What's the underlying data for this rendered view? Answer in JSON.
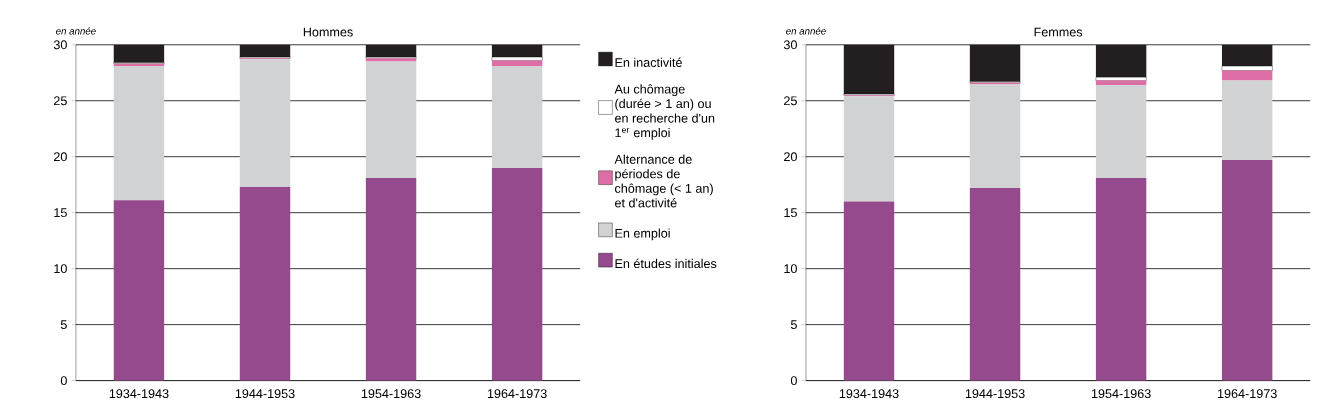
{
  "chart_data": [
    {
      "type": "bar",
      "stacked": true,
      "title": "Hommes",
      "ylabel": "en année",
      "categories": [
        "1934-1943",
        "1944-1953",
        "1954-1963",
        "1964-1973"
      ],
      "series": [
        {
          "name": "En études initiales",
          "color": "#944a8c",
          "values": [
            16.1,
            17.3,
            18.1,
            19.0
          ]
        },
        {
          "name": "En emploi",
          "color": "#d1d2d4",
          "values": [
            12.0,
            11.4,
            10.4,
            9.1
          ]
        },
        {
          "name": "Alternance de périodes de chômage (< 1 an) et d'activité",
          "color": "#dd6fa6",
          "values": [
            0.2,
            0.1,
            0.3,
            0.5
          ]
        },
        {
          "name": "Au chômage (durée > 1 an) ou en recherche d'un 1$^{er}$ emploi",
          "color": "#ffffff",
          "values": [
            0.1,
            0.1,
            0.1,
            0.3
          ]
        },
        {
          "name": "En inactivité",
          "color": "#231f20",
          "values": [
            1.6,
            1.1,
            1.1,
            1.1
          ]
        }
      ],
      "ylim": [
        0,
        30
      ],
      "yticks": [
        0,
        5,
        10,
        15,
        20,
        25,
        30
      ],
      "grid": "y",
      "legend": "right"
    },
    {
      "type": "bar",
      "stacked": true,
      "title": "Femmes",
      "ylabel": "en année",
      "categories": [
        "1934-1943",
        "1944-1953",
        "1954-1963",
        "1964-1973"
      ],
      "series": [
        {
          "color": "#944a8c",
          "values": [
            16.0,
            17.2,
            18.1,
            19.7
          ]
        },
        {
          "color": "#d1d2d4",
          "values": [
            9.4,
            9.3,
            8.3,
            7.1
          ]
        },
        {
          "color": "#dd6fa6",
          "values": [
            0.1,
            0.1,
            0.4,
            0.9
          ]
        },
        {
          "color": "#ffffff",
          "values": [
            0.1,
            0.1,
            0.3,
            0.4
          ]
        },
        {
          "color": "#231f20",
          "values": [
            4.4,
            3.3,
            2.9,
            1.9
          ]
        }
      ],
      "ylim": [
        0,
        30
      ],
      "yticks": [
        0,
        5,
        10,
        15,
        20,
        25,
        30
      ],
      "grid": "y"
    }
  ]
}
